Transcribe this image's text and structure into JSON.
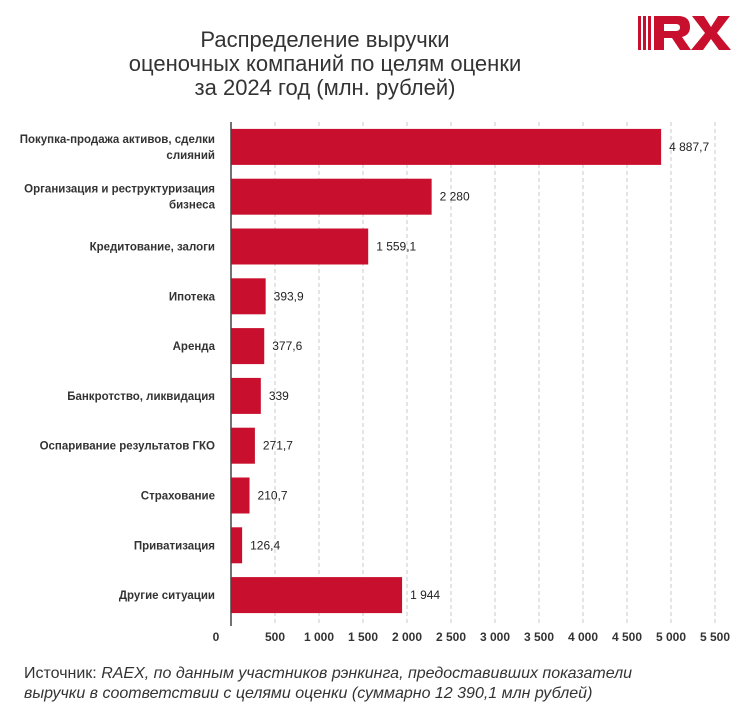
{
  "title_lines": [
    "Распределение выручки",
    "оценочных компаний по целям оценки",
    "за 2024 год (млн. рублей)"
  ],
  "logo": {
    "text": "RX",
    "color": "#c8102e"
  },
  "footer": {
    "prefix": "Источник:",
    "source": "RAEX",
    "rest_line1": ", по данным участников рэнкинга, предоставивших показатели",
    "line2": "выручки в соответствии с целями оценки (суммарно 12 390,1 млн рублей)"
  },
  "chart_data": {
    "type": "bar",
    "orientation": "horizontal",
    "bar_color": "#c8102e",
    "categories": [
      [
        "Покупка-продажа активов, сделки",
        "слияний"
      ],
      [
        "Организация и реструктуризация",
        "бизнеса"
      ],
      [
        "Кредитование, залоги"
      ],
      [
        "Ипотека"
      ],
      [
        "Аренда"
      ],
      [
        "Банкротство, ликвидация"
      ],
      [
        "Оспаривание результатов ГКО"
      ],
      [
        "Страхование"
      ],
      [
        "Приватизация"
      ],
      [
        "Другие ситуации"
      ]
    ],
    "values": [
      4887.7,
      2280,
      1559.1,
      393.9,
      377.6,
      339,
      271.7,
      210.7,
      126.4,
      1944
    ],
    "value_labels": [
      "4 887,7",
      "2 280",
      "1 559,1",
      "393,9",
      "377,6",
      "339",
      "271,7",
      "210,7",
      "126,4",
      "1 944"
    ],
    "xlim": [
      0,
      5500
    ],
    "x_ticks": [
      0,
      500,
      1000,
      1500,
      2000,
      2500,
      3000,
      3500,
      4000,
      4500,
      5000,
      5500
    ],
    "x_tick_labels": [
      "0",
      "500",
      "1 000",
      "1 500",
      "2 000",
      "2 500",
      "3 000",
      "3 500",
      "4 000",
      "4 500",
      "5 000",
      "5 500"
    ],
    "grid": "vertical-dashed",
    "legend": "none"
  }
}
